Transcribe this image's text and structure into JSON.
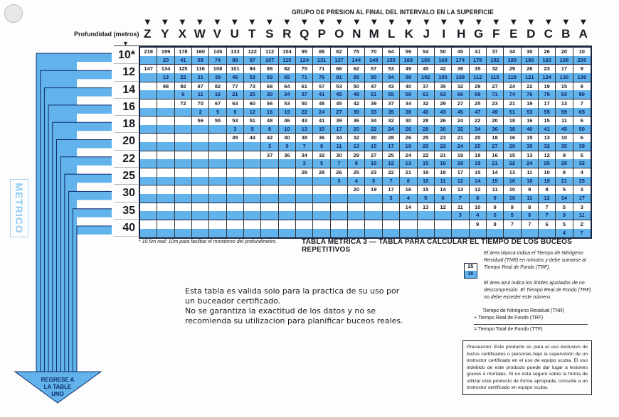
{
  "header": {
    "title": "GRUPO DE PRESION AL FINAL DEL INTERVALO EN LA SUPERFICIE",
    "depth_label": "Profundidad (metros)",
    "groups": [
      "Z",
      "Y",
      "X",
      "W",
      "V",
      "U",
      "T",
      "S",
      "R",
      "Q",
      "P",
      "O",
      "N",
      "M",
      "L",
      "K",
      "J",
      "I",
      "H",
      "G",
      "F",
      "E",
      "D",
      "C",
      "B",
      "A"
    ]
  },
  "colors": {
    "blue": "#62b3ec",
    "navy": "#0d2a6a",
    "ink": "#1a1a22"
  },
  "table": {
    "rows": [
      {
        "depth": "10*",
        "tnr": [
          219,
          199,
          178,
          160,
          145,
          133,
          122,
          112,
          104,
          95,
          88,
          82,
          75,
          70,
          64,
          59,
          54,
          50,
          45,
          41,
          37,
          34,
          30,
          26,
          20,
          10
        ],
        "limit": [
          20,
          41,
          59,
          74,
          88,
          97,
          107,
          115,
          124,
          131,
          137,
          144,
          149,
          155,
          160,
          165,
          169,
          174,
          178,
          182,
          185,
          189,
          193,
          199,
          209
        ]
      },
      {
        "depth": "12",
        "tnr": [
          147,
          134,
          125,
          116,
          108,
          101,
          94,
          88,
          82,
          75,
          71,
          66,
          62,
          57,
          53,
          49,
          45,
          42,
          38,
          35,
          32,
          29,
          26,
          23,
          17,
          9
        ],
        "limit": [
          13,
          22,
          31,
          39,
          46,
          53,
          59,
          65,
          71,
          76,
          81,
          85,
          90,
          94,
          98,
          102,
          105,
          109,
          112,
          115,
          118,
          121,
          124,
          130,
          138
        ]
      },
      {
        "depth": "14",
        "tnr": [
          98,
          92,
          87,
          82,
          77,
          73,
          68,
          64,
          61,
          57,
          53,
          50,
          47,
          43,
          40,
          37,
          35,
          32,
          29,
          27,
          24,
          22,
          19,
          15,
          8
        ],
        "limit": [
          6,
          11,
          16,
          21,
          25,
          30,
          34,
          37,
          41,
          45,
          48,
          51,
          55,
          58,
          61,
          63,
          66,
          69,
          71,
          74,
          76,
          79,
          83,
          90
        ]
      },
      {
        "depth": "16",
        "tnr": [
          72,
          70,
          67,
          63,
          60,
          56,
          53,
          50,
          48,
          45,
          42,
          39,
          37,
          34,
          32,
          29,
          27,
          25,
          23,
          21,
          19,
          17,
          13,
          7
        ],
        "limit": [
          2,
          5,
          9,
          12,
          16,
          19,
          22,
          24,
          27,
          30,
          33,
          35,
          38,
          40,
          43,
          45,
          47,
          49,
          51,
          53,
          55,
          59,
          65
        ]
      },
      {
        "depth": "18",
        "tnr": [
          56,
          55,
          53,
          51,
          48,
          46,
          43,
          41,
          39,
          36,
          34,
          32,
          30,
          28,
          26,
          24,
          22,
          20,
          18,
          16,
          15,
          11,
          6
        ],
        "limit": [
          3,
          5,
          8,
          10,
          13,
          15,
          17,
          20,
          22,
          24,
          26,
          28,
          30,
          32,
          34,
          36,
          38,
          40,
          41,
          45,
          50
        ]
      },
      {
        "depth": "20",
        "tnr": [
          45,
          44,
          42,
          40,
          38,
          36,
          34,
          32,
          30,
          28,
          26,
          25,
          23,
          21,
          20,
          18,
          16,
          15,
          13,
          10,
          6
        ],
        "limit": [
          3,
          5,
          7,
          9,
          11,
          13,
          15,
          17,
          19,
          20,
          22,
          24,
          25,
          27,
          29,
          30,
          32,
          35,
          39
        ]
      },
      {
        "depth": "22",
        "tnr": [
          37,
          36,
          34,
          32,
          30,
          29,
          27,
          25,
          24,
          22,
          21,
          19,
          18,
          16,
          15,
          13,
          12,
          9,
          5
        ],
        "limit": [
          3,
          5,
          7,
          8,
          10,
          12,
          13,
          15,
          16,
          18,
          19,
          21,
          22,
          24,
          25,
          28,
          32
        ]
      },
      {
        "depth": "25",
        "tnr": [
          29,
          28,
          26,
          25,
          23,
          22,
          21,
          19,
          18,
          17,
          15,
          14,
          13,
          11,
          10,
          8,
          4
        ],
        "limit": [
          3,
          4,
          5,
          7,
          8,
          10,
          11,
          12,
          14,
          15,
          16,
          18,
          19,
          21,
          25
        ]
      },
      {
        "depth": "30",
        "tnr": [
          20,
          19,
          17,
          16,
          15,
          14,
          13,
          12,
          11,
          10,
          9,
          8,
          5,
          3
        ],
        "limit": [
          3,
          4,
          5,
          6,
          7,
          8,
          9,
          10,
          11,
          12,
          14,
          17
        ]
      },
      {
        "depth": "35",
        "tnr": [
          14,
          13,
          12,
          11,
          10,
          9,
          9,
          8,
          7,
          5,
          3
        ],
        "limit": [
          3,
          4,
          5,
          5,
          6,
          7,
          9,
          11
        ]
      },
      {
        "depth": "40",
        "tnr": [
          9,
          8,
          7,
          7,
          6,
          5,
          2
        ],
        "limit": [
          4,
          7
        ]
      }
    ]
  },
  "footnote": "* 10.5m real; 10m para facilitar el monitoreo del profundimetro.",
  "table_title": "TABLA METRICA 3 — TABLA PARA CALCULAR EL TIEMPO DE LOS BUCEOS REPETITIVOS",
  "legend": {
    "white_text": "El área blanca indica el Tiempo de Nitrógeno Residual (TNR) en minutos y debe sumarse al Tiempo Real de Fondo (TRF).",
    "sample_top": "25",
    "sample_bottom": "30",
    "blue_text": "El área azul indica los límites ajustados de no descompresión. El Tiempo Real de Fondo (TRF) no debe exceder este número.",
    "sum_line1": "Tiempo de Nitrógeno Residual (TNR)",
    "sum_line2": "+  Tiempo Real de Fondo (TRF)",
    "sum_line3": "=  Tiempo Total de Fondo (TTF)"
  },
  "caution": "Precaución: Este producto es para el uso exclusivo de buzos certificados o personas bajo la supervisión de un instructor certificado en el uso de equipo scuba. El uso indebido de este producto puede dar lugar a lesiones graves o mortales. Si no está seguro sobre la forma de utilizar este producto de forma apropiada, consulte a un instructor certificado en equipo scuba.",
  "disclaimer": {
    "line1": "Esta tabla es valida solo para la practica de su uso por",
    "line2": "un buceador certificado.",
    "line3": "No se garantiza la exactitud de los datos y no se",
    "line4": "recomienda su utilizacion para planificar buceos reales."
  },
  "side_label": "METRICO",
  "arrow_label": {
    "line1": "REGRESE A",
    "line2": "LA TABLE",
    "line3": "UNO"
  }
}
